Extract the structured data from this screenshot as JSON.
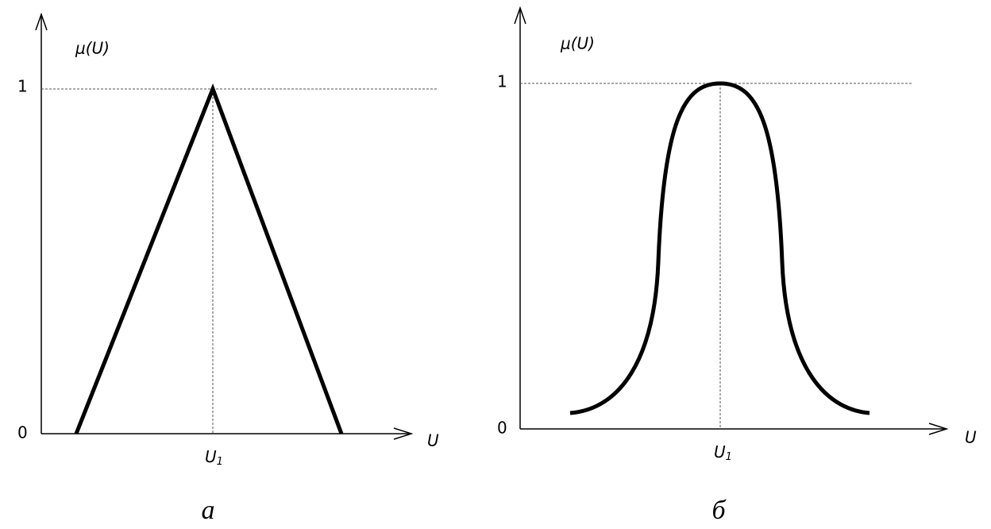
{
  "panels": [
    {
      "y_label": "μ(U)",
      "tick_one": "1",
      "tick_zero": "0",
      "x_label": "U",
      "x_mark": {
        "base": "U",
        "sub": "1"
      },
      "caption": "а"
    },
    {
      "y_label": "μ(U)",
      "tick_one": "1",
      "tick_zero": "0",
      "x_label": "U",
      "x_mark": {
        "base": "U",
        "sub": "1"
      },
      "caption": "б"
    }
  ]
}
